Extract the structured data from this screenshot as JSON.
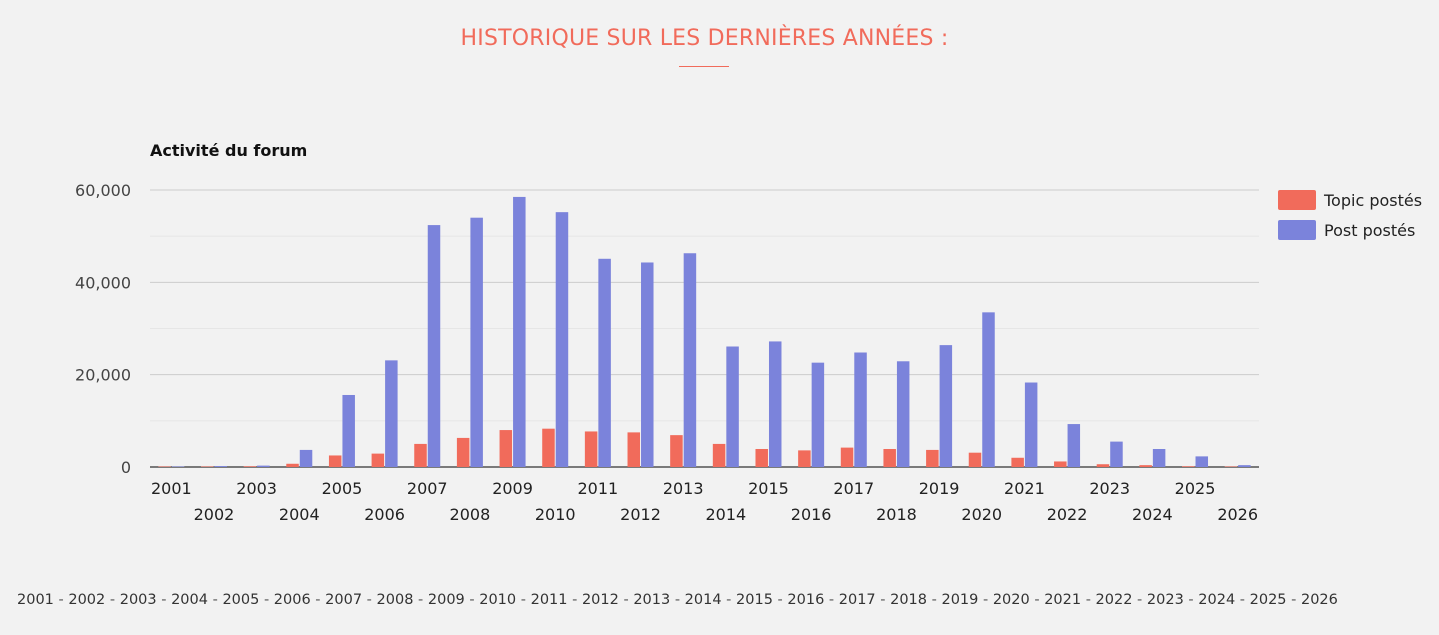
{
  "header": {
    "title": "HISTORIQUE SUR LES DERNIÈRES ANNÉES :"
  },
  "colors": {
    "accent": "#f16b5b",
    "topic_series": "#f16b5b",
    "post_series": "#7b83db",
    "grid": "#cccccc",
    "axis_text": "#444444"
  },
  "chart_data": {
    "type": "bar",
    "title": "Activité du forum",
    "xlabel": "",
    "ylabel": "",
    "ylim": [
      0,
      60000
    ],
    "yticks": [
      0,
      20000,
      40000,
      60000
    ],
    "ytick_labels": [
      "0",
      "20,000",
      "40,000",
      "60,000"
    ],
    "grid": true,
    "legend_position": "right",
    "categories": [
      "2001",
      "2002",
      "2003",
      "2004",
      "2005",
      "2006",
      "2007",
      "2008",
      "2009",
      "2010",
      "2011",
      "2012",
      "2013",
      "2014",
      "2015",
      "2016",
      "2017",
      "2018",
      "2019",
      "2020",
      "2021",
      "2022",
      "2023",
      "2024",
      "2025",
      "2026"
    ],
    "series": [
      {
        "name": "Topic postés",
        "color": "#f16b5b",
        "values": [
          50,
          80,
          150,
          700,
          2500,
          2900,
          5000,
          6300,
          8000,
          8300,
          7700,
          7500,
          6900,
          5000,
          3900,
          3600,
          4200,
          3900,
          3700,
          3100,
          2000,
          1200,
          600,
          400,
          150,
          30
        ]
      },
      {
        "name": "Post postés",
        "color": "#7b83db",
        "values": [
          100,
          200,
          300,
          3700,
          15600,
          23100,
          52400,
          54000,
          58500,
          55200,
          45100,
          44300,
          46300,
          26100,
          27200,
          22600,
          24800,
          22900,
          26400,
          33500,
          18300,
          9300,
          5500,
          3900,
          2300,
          400
        ]
      }
    ]
  },
  "year_links": {
    "separator": "-",
    "years": [
      "2001",
      "2002",
      "2003",
      "2004",
      "2005",
      "2006",
      "2007",
      "2008",
      "2009",
      "2010",
      "2011",
      "2012",
      "2013",
      "2014",
      "2015",
      "2016",
      "2017",
      "2018",
      "2019",
      "2020",
      "2021",
      "2022",
      "2023",
      "2024",
      "2025",
      "2026"
    ]
  }
}
